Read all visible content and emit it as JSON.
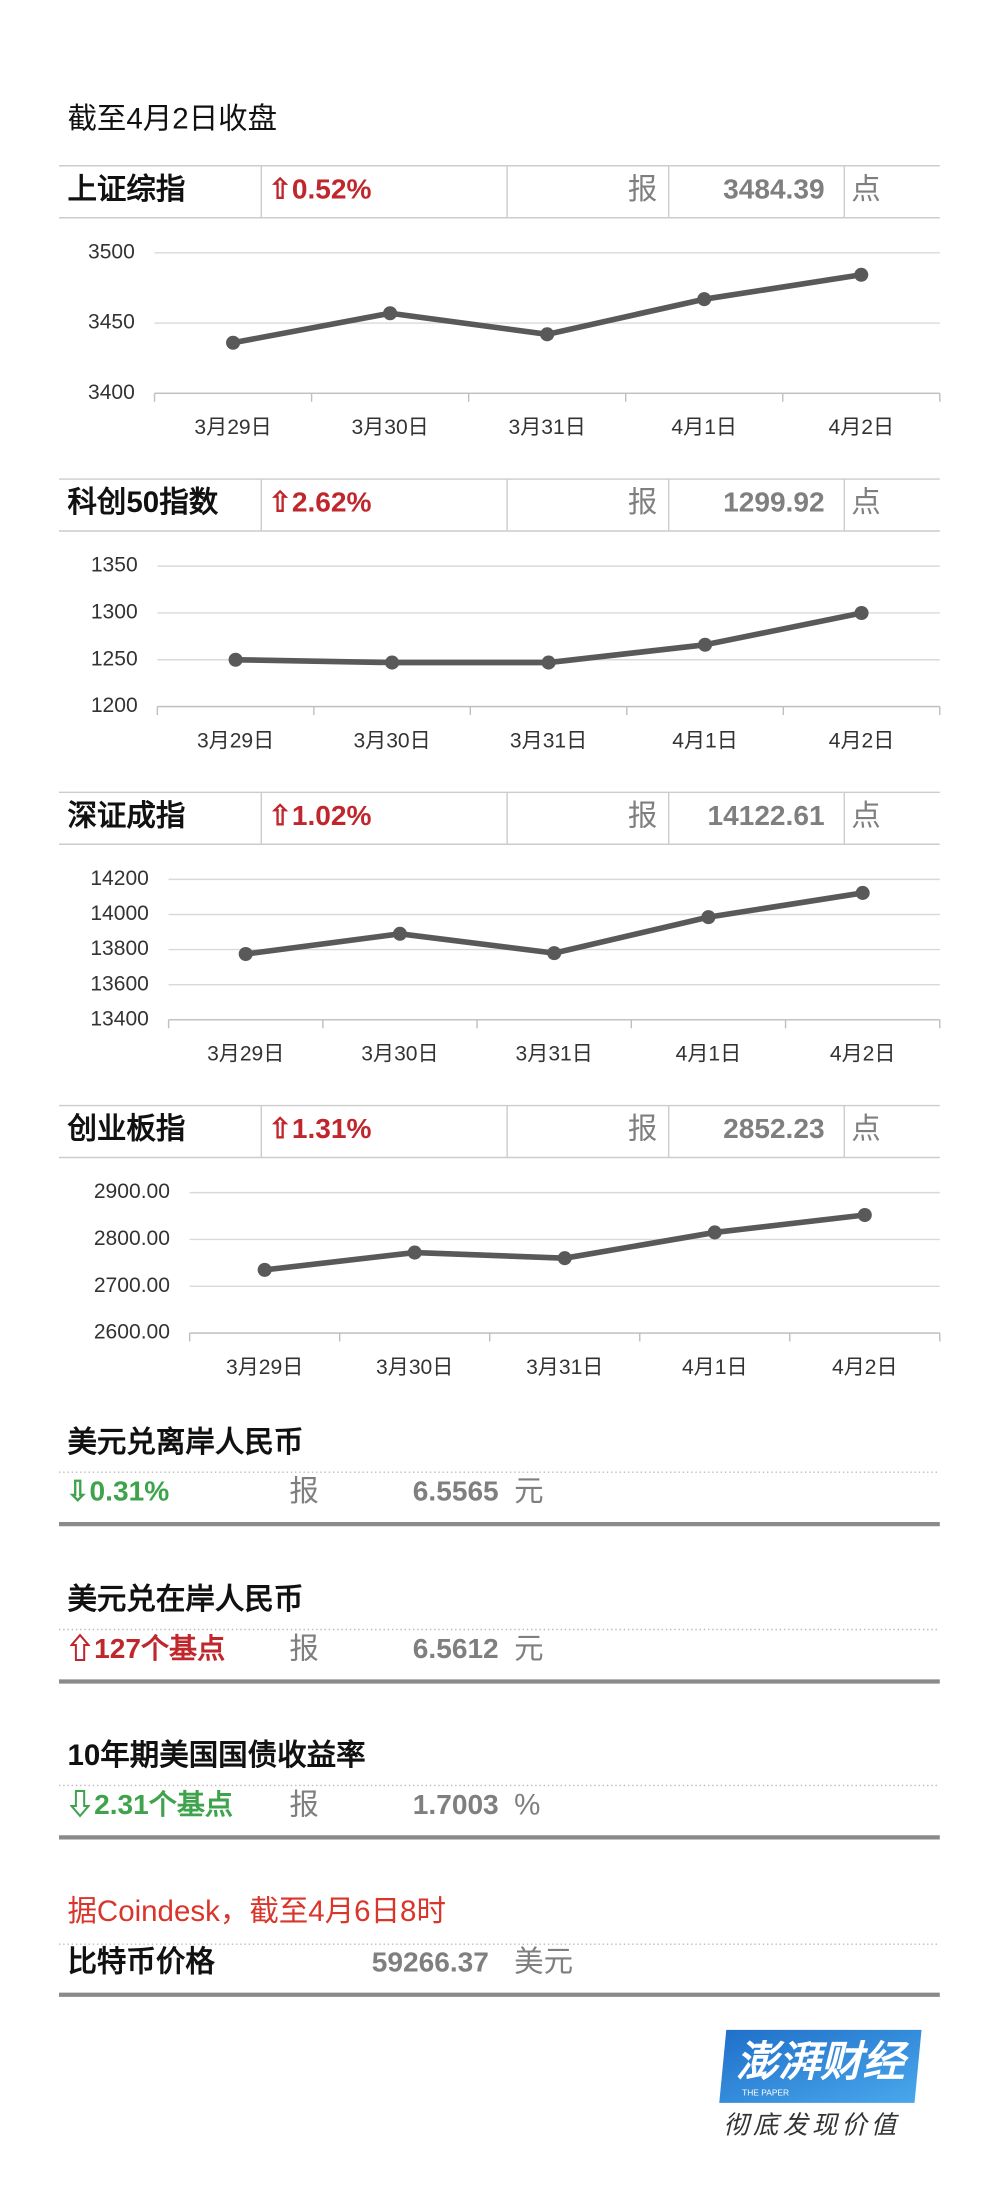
{
  "header": {
    "title": "截至4月2日收盘"
  },
  "chart_data": [
    {
      "type": "line",
      "title": "上证综指",
      "change": "⇧0.52%",
      "quote_word": "报",
      "close": "3484.39",
      "unit": "点",
      "categories": [
        "3月29日",
        "3月30日",
        "3月31日",
        "4月1日",
        "4月2日"
      ],
      "values": [
        3436,
        3457,
        3442,
        3467,
        3484.39
      ],
      "color": "#595959",
      "ylim": [
        3400,
        3500
      ],
      "yticks": [
        3400,
        3450,
        3500
      ],
      "grid": true
    },
    {
      "type": "line",
      "title": "科创50指数",
      "change": "⇧2.62%",
      "quote_word": "报",
      "close": "1299.92",
      "unit": "点",
      "categories": [
        "3月29日",
        "3月30日",
        "3月31日",
        "4月1日",
        "4月2日"
      ],
      "values": [
        1250,
        1247,
        1247,
        1266,
        1299.92
      ],
      "color": "#595959",
      "ylim": [
        1200,
        1350
      ],
      "yticks": [
        1200,
        1250,
        1300,
        1350
      ],
      "grid": true
    },
    {
      "type": "line",
      "title": "深证成指",
      "change": "⇧1.02%",
      "quote_word": "报",
      "close": "14122.61",
      "unit": "点",
      "categories": [
        "3月29日",
        "3月30日",
        "3月31日",
        "4月1日",
        "4月2日"
      ],
      "values": [
        13775,
        13890,
        13780,
        13985,
        14122.61
      ],
      "color": "#595959",
      "ylim": [
        13400,
        14200
      ],
      "yticks": [
        13400,
        13600,
        13800,
        14000,
        14200
      ],
      "grid": true
    },
    {
      "type": "line",
      "title": "创业板指",
      "change": "⇧1.31%",
      "quote_word": "报",
      "close": "2852.23",
      "unit": "点",
      "categories": [
        "3月29日",
        "3月30日",
        "3月31日",
        "4月1日",
        "4月2日"
      ],
      "values": [
        2735,
        2772,
        2760,
        2815,
        2852.23
      ],
      "color": "#595959",
      "ylim": [
        2600,
        2900
      ],
      "yticks": [
        {
          "value": 2600,
          "label": "2600.00"
        },
        {
          "value": 2700,
          "label": "2700.00"
        },
        {
          "value": 2800,
          "label": "2800.00"
        },
        {
          "value": 2900,
          "label": "2900.00"
        }
      ],
      "grid": true
    }
  ],
  "quotes": [
    {
      "title": "美元兑离岸人民币",
      "change": "⇩0.31%",
      "color": "#3fa34d",
      "quote_word": "报",
      "value": "6.5565",
      "unit": "元"
    },
    {
      "title": "美元兑在岸人民币",
      "change": "⇧127个基点",
      "color": "#c0272d",
      "quote_word": "报",
      "value": "6.5612",
      "unit": "元"
    },
    {
      "title": "10年期美国国债收益率",
      "change": "⇩2.31个基点",
      "color": "#3fa34d",
      "quote_word": "报",
      "value": "1.7003",
      "unit": "%"
    }
  ],
  "bitcoin": {
    "note": "据Coindesk，截至4月6日8时",
    "title": "比特币价格",
    "value": "59266.37",
    "unit": "美元"
  },
  "logo": {
    "brand": "澎湃财经",
    "brand_en": "THE PAPER",
    "slogan": "彻底发现价值"
  }
}
